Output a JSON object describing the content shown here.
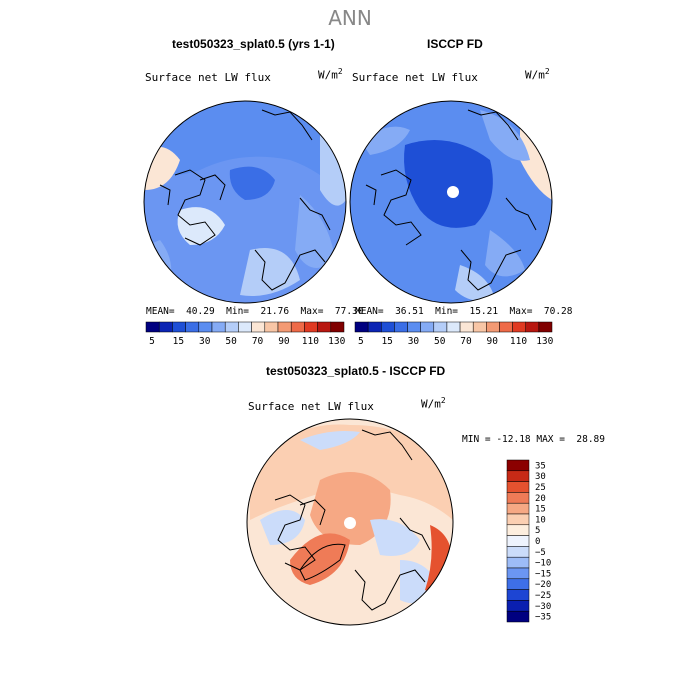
{
  "page": {
    "title": "ANN"
  },
  "panels": [
    {
      "id": "model",
      "title": "test050323_splat0.5 (yrs 1-1)",
      "variable": "Surface net LW flux",
      "units_base": "W/m",
      "units_exp": "2",
      "stats": {
        "mean_label": "MEAN=",
        "mean": "40.29",
        "min_label": "Min=",
        "min": "21.76",
        "max_label": "Max=",
        "max": "77.30"
      }
    },
    {
      "id": "obs",
      "title": "ISCCP FD",
      "variable": "Surface net LW flux",
      "units_base": "W/m",
      "units_exp": "2",
      "stats": {
        "mean_label": "MEAN=",
        "mean": "36.51",
        "min_label": "Min=",
        "min": "15.21",
        "max_label": "Max=",
        "max": "70.28"
      }
    },
    {
      "id": "diff",
      "title": "test050323_splat0.5 - ISCCP FD",
      "variable": "Surface net LW flux",
      "units_base": "W/m",
      "units_exp": "2",
      "stats_line": "MIN = -12.18 MAX =  28.89"
    }
  ],
  "colorbar_abs": {
    "colors": [
      "#000080",
      "#0b24b4",
      "#1e4fd6",
      "#3a6ee6",
      "#5b8df0",
      "#85abf5",
      "#b4cdf8",
      "#dce9fb",
      "#fbe6d5",
      "#f8c6a6",
      "#f39a74",
      "#ee6a48",
      "#e03a22",
      "#b81710",
      "#800000"
    ],
    "labels": [
      "5",
      "15",
      "30",
      "50",
      "70",
      "90",
      "110",
      "130"
    ]
  },
  "colorbar_diff": {
    "colors": [
      "#000080",
      "#0a1fb0",
      "#1d45d3",
      "#3e6fe8",
      "#6b96f2",
      "#9dbcf7",
      "#cbdcfa",
      "#eef3fd",
      "#fdeede",
      "#fbcfb2",
      "#f6a884",
      "#ef7b57",
      "#e5522f",
      "#c72a16",
      "#8b0000"
    ],
    "labels": [
      "35",
      "30",
      "25",
      "20",
      "15",
      "10",
      "5",
      "0",
      "−5",
      "−10",
      "−15",
      "−20",
      "−25",
      "−30",
      "−35"
    ]
  },
  "map_legend": {
    "land_outline_color": "#000000",
    "pole_mask_color": "#ffffff"
  }
}
